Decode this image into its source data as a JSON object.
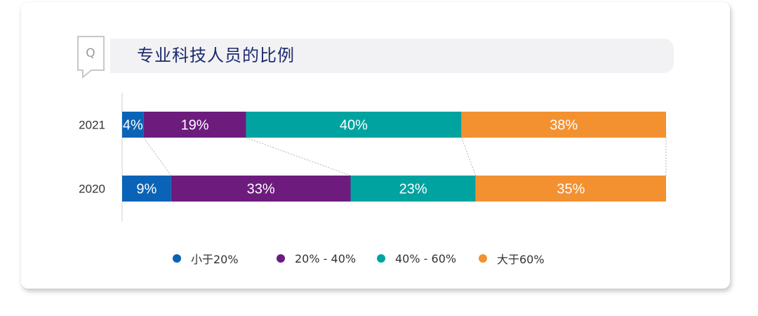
{
  "title": "专业科技人员的比例",
  "icon": "q-speech-bubble-icon",
  "icon_letter": "Q",
  "colors": {
    "title": "#1d2a6e",
    "lt20": "#0a63b6",
    "20_40": "#6d1c7e",
    "40_60": "#00a3a0",
    "gt60": "#f39130"
  },
  "legend": [
    {
      "label": "小于20%",
      "color": "#0a63b6"
    },
    {
      "label": "20% - 40%",
      "color": "#6d1c7e"
    },
    {
      "label": "40% - 60%",
      "color": "#00a3a0"
    },
    {
      "label": "大于60%",
      "color": "#f39130"
    }
  ],
  "chart_data": {
    "type": "bar",
    "orientation": "horizontal",
    "stacked": true,
    "normalized": true,
    "categories": [
      "2021",
      "2020"
    ],
    "series": [
      {
        "name": "小于20%",
        "color": "#0a63b6",
        "values": [
          4,
          9
        ],
        "labels": [
          "4%",
          "9%"
        ]
      },
      {
        "name": "20% - 40%",
        "color": "#6d1c7e",
        "values": [
          19,
          33
        ],
        "labels": [
          "19%",
          "33%"
        ]
      },
      {
        "name": "40% - 60%",
        "color": "#00a3a0",
        "values": [
          40,
          23
        ],
        "labels": [
          "40%",
          "23%"
        ]
      },
      {
        "name": "大于60%",
        "color": "#f39130",
        "values": [
          38,
          35
        ],
        "labels": [
          "38%",
          "35%"
        ]
      }
    ],
    "connector_lines": true,
    "legend_position": "bottom",
    "grid": false
  }
}
